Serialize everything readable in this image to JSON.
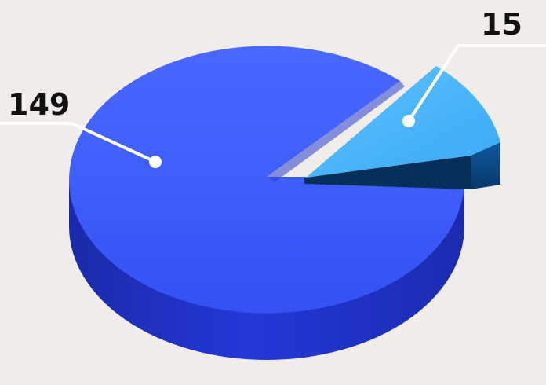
{
  "chart_data": {
    "type": "pie",
    "style": "3d-exploded",
    "slices": [
      {
        "value": 149,
        "label": "149"
      },
      {
        "value": 15,
        "label": "15"
      }
    ],
    "title": "",
    "legend": "none",
    "colors": {
      "background": "#efecea",
      "large_slice_top": "#3d5cff",
      "large_slice_side": "#1f33c9",
      "small_slice_top": "#49b6ff",
      "small_slice_side": "#0b4a8c",
      "leader_line": "#ffffff",
      "label_text": "#111111"
    }
  }
}
